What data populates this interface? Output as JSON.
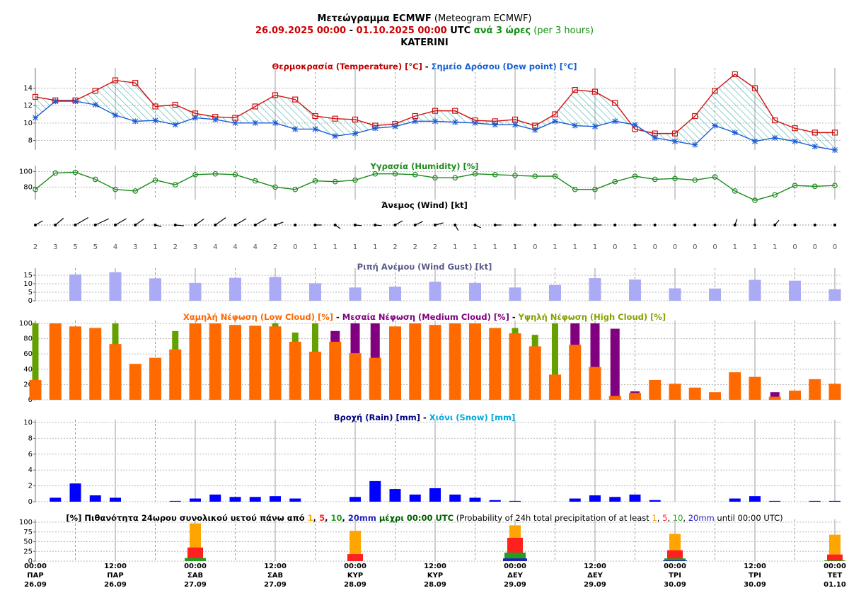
{
  "header": {
    "lines": [
      [
        {
          "text": "Μετεώγραμμα ECMWF",
          "color": "#000000",
          "bold": true
        },
        {
          "text": " (Meteogram ECMWF)",
          "color": "#000000",
          "bold": false
        }
      ],
      [
        {
          "text": "26.09.2025 00:00",
          "color": "#cc0000",
          "bold": true
        },
        {
          "text": " - ",
          "color": "#000000",
          "bold": true
        },
        {
          "text": "01.10.2025 00:00",
          "color": "#cc0000",
          "bold": true
        },
        {
          "text": " UTC",
          "color": "#000000",
          "bold": true
        },
        {
          "text": " ανά 3 ώρες",
          "color": "#109010",
          "bold": true
        },
        {
          "text": " (per 3 hours)",
          "color": "#109010",
          "bold": false
        }
      ],
      [
        {
          "text": "KATERINI",
          "color": "#000000",
          "bold": true
        }
      ]
    ]
  },
  "time_axis": {
    "labels": [
      {
        "time": "00:00",
        "day": "ΠΑΡ",
        "date": "26.09"
      },
      {
        "time": "12:00",
        "day": "ΠΑΡ",
        "date": "26.09"
      },
      {
        "time": "00:00",
        "day": "ΣΑΒ",
        "date": "27.09"
      },
      {
        "time": "12:00",
        "day": "ΣΑΒ",
        "date": "27.09"
      },
      {
        "time": "00:00",
        "day": "ΚΥΡ",
        "date": "28.09"
      },
      {
        "time": "12:00",
        "day": "ΚΥΡ",
        "date": "28.09"
      },
      {
        "time": "00:00",
        "day": "ΔΕΥ",
        "date": "29.09"
      },
      {
        "time": "12:00",
        "day": "ΔΕΥ",
        "date": "29.09"
      },
      {
        "time": "00:00",
        "day": "ΤΡΙ",
        "date": "30.09"
      },
      {
        "time": "12:00",
        "day": "ΤΡΙ",
        "date": "30.09"
      },
      {
        "time": "00:00",
        "day": "ΤΕΤ",
        "date": "01.10"
      }
    ]
  },
  "chart_data": [
    {
      "type": "line",
      "title_parts": [
        {
          "text": "Θερμοκρασία (Temperature) [°C]",
          "color": "#c00000",
          "bold": true
        },
        {
          "text": " - ",
          "color": "#000000",
          "bold": true
        },
        {
          "text": "Σημείο Δρόσου (Dew point) [°C]",
          "color": "#1560d0",
          "bold": true
        }
      ],
      "ylim": [
        6.9,
        16
      ],
      "yticks": [
        8,
        10,
        12,
        14
      ],
      "grid": true,
      "fill_between": true,
      "fill_color": "#20a0a0",
      "series": [
        {
          "name": "Temperature",
          "color": "#d01010",
          "marker": "square",
          "values": [
            13.0,
            12.6,
            12.6,
            13.7,
            14.9,
            14.6,
            11.9,
            12.1,
            11.1,
            10.7,
            10.6,
            11.9,
            13.2,
            12.7,
            10.8,
            10.5,
            10.4,
            9.7,
            9.9,
            10.8,
            11.4,
            11.4,
            10.3,
            10.2,
            10.4,
            9.7,
            11.0,
            13.8,
            13.6,
            12.3,
            9.3,
            8.8,
            8.8,
            10.8,
            13.7,
            15.6,
            14.0,
            10.3,
            9.4,
            8.9,
            8.9
          ]
        },
        {
          "name": "Dew point",
          "color": "#1a5cd8",
          "marker": "star",
          "values": [
            10.6,
            12.5,
            12.5,
            12.1,
            10.9,
            10.2,
            10.3,
            9.8,
            10.6,
            10.4,
            10.0,
            10.0,
            10.0,
            9.3,
            9.3,
            8.5,
            8.8,
            9.4,
            9.6,
            10.2,
            10.2,
            10.1,
            10.0,
            9.8,
            9.8,
            9.2,
            10.2,
            9.7,
            9.6,
            10.2,
            9.8,
            8.3,
            7.9,
            7.5,
            9.7,
            8.9,
            7.9,
            8.3,
            7.9,
            7.3,
            6.9
          ]
        }
      ]
    },
    {
      "type": "line",
      "title_parts": [
        {
          "text": "Υγρασία (Humidity) [%]",
          "color": "#1a8a1a",
          "bold": true
        }
      ],
      "ylim": [
        64,
        104
      ],
      "yticks": [
        80,
        100
      ],
      "grid": true,
      "series": [
        {
          "name": "Humidity",
          "color": "#1a8a1a",
          "marker": "circle",
          "values": [
            77,
            98,
            99,
            90,
            77,
            75,
            89,
            83,
            96,
            97,
            96,
            88,
            80,
            77,
            88,
            87,
            89,
            97,
            97,
            96,
            92,
            92,
            97,
            96,
            95,
            94,
            94,
            77,
            77,
            87,
            94,
            90,
            91,
            89,
            93,
            75,
            63,
            70,
            82,
            81,
            82
          ]
        }
      ]
    },
    {
      "type": "wind",
      "title_parts": [
        {
          "text": "Άνεμος (Wind) [kt]",
          "color": "#000000",
          "bold": true
        }
      ],
      "color": "#000000",
      "speeds": [
        2,
        3,
        5,
        5,
        4,
        3,
        1,
        2,
        3,
        4,
        4,
        4,
        2,
        0,
        1,
        1,
        1,
        1,
        2,
        2,
        2,
        1,
        1,
        1,
        1,
        0,
        1,
        1,
        1,
        0,
        1,
        0,
        0,
        0,
        0,
        1,
        1,
        1,
        0,
        0,
        0
      ],
      "directions": [
        60,
        50,
        60,
        65,
        60,
        55,
        105,
        95,
        55,
        55,
        60,
        60,
        70,
        null,
        90,
        125,
        95,
        95,
        60,
        65,
        75,
        150,
        115,
        90,
        90,
        null,
        90,
        90,
        90,
        null,
        90,
        null,
        null,
        null,
        null,
        20,
        0,
        40,
        null,
        null,
        null
      ]
    },
    {
      "type": "bar",
      "title_parts": [
        {
          "text": "Ριπή Ανέμου (Wind Gust) [kt]",
          "color": "#5a5a8a",
          "bold": true
        }
      ],
      "ylim": [
        0,
        17.5
      ],
      "yticks": [
        0,
        5,
        10,
        15
      ],
      "grid": true,
      "series": [
        {
          "name": "Wind Gust",
          "color": "#aaaaf5",
          "values": [
            null,
            null,
            15.5,
            null,
            16.8,
            null,
            13.2,
            null,
            10.5,
            null,
            13.5,
            null,
            14,
            null,
            10.3,
            null,
            7.8,
            null,
            8.3,
            null,
            11.2,
            null,
            10.5,
            null,
            7.8,
            null,
            9.3,
            null,
            13.3,
            null,
            12.5,
            null,
            7.3,
            null,
            7.2,
            null,
            12.3,
            null,
            11.8,
            null,
            6.8
          ]
        }
      ]
    },
    {
      "type": "bar",
      "title_parts": [
        {
          "text": "Χαμηλή Νέφωση (Low Cloud) [%]",
          "color": "#ff6600",
          "bold": true
        },
        {
          "text": " - ",
          "color": "#000000",
          "bold": true
        },
        {
          "text": "Μεσαία Νέφωση (Medium Cloud) [%]",
          "color": "#800080",
          "bold": true
        },
        {
          "text": " - ",
          "color": "#000000",
          "bold": true
        },
        {
          "text": "Υψηλή Νέφωση (High Cloud) [%]",
          "color": "#8aa000",
          "bold": true
        }
      ],
      "ylim": [
        0,
        100
      ],
      "yticks": [
        0,
        20,
        40,
        60,
        80,
        100
      ],
      "grid": true,
      "series": [
        {
          "name": "Low Cloud",
          "color": "#ff6a00",
          "values": [
            26,
            100,
            96,
            94,
            73,
            47,
            55,
            66,
            100,
            100,
            98,
            97,
            96,
            76,
            63,
            76,
            61,
            55,
            96,
            100,
            98,
            100,
            100,
            94,
            87,
            70,
            33,
            72,
            43,
            5,
            9,
            26,
            21,
            16,
            10,
            36,
            30,
            4,
            12,
            27,
            21
          ]
        },
        {
          "name": "Medium Cloud",
          "color": "#800080",
          "values": [
            0,
            0,
            0,
            0,
            0,
            0,
            0,
            0,
            0,
            0,
            0,
            0,
            0,
            0,
            0,
            90,
            100,
            100,
            0,
            0,
            0,
            0,
            0,
            0,
            0,
            0,
            0,
            100,
            100,
            93,
            11,
            0,
            0,
            0,
            0,
            0,
            0,
            10,
            0,
            0,
            0
          ]
        },
        {
          "name": "High Cloud",
          "color": "#66a000",
          "values": [
            100,
            0,
            0,
            0,
            100,
            0,
            0,
            90,
            0,
            0,
            0,
            0,
            100,
            88,
            100,
            0,
            0,
            0,
            0,
            0,
            0,
            0,
            0,
            0,
            94,
            85,
            100,
            0,
            0,
            0,
            0,
            0,
            0,
            0,
            0,
            0,
            0,
            0,
            0,
            0,
            0
          ]
        }
      ]
    },
    {
      "type": "bar",
      "title_parts": [
        {
          "text": "Βροχή (Rain) [mm]",
          "color": "#000080",
          "bold": true
        },
        {
          "text": " - ",
          "color": "#000000",
          "bold": true
        },
        {
          "text": "Χιόνι (Snow) [mm]",
          "color": "#00aadd",
          "bold": true
        }
      ],
      "ylim": [
        0,
        10
      ],
      "yticks": [
        0,
        2,
        4,
        6,
        8,
        10
      ],
      "grid": true,
      "series": [
        {
          "name": "Rain",
          "color": "#0000ff",
          "values": [
            0,
            0.5,
            2.3,
            0.8,
            0.5,
            0,
            0,
            0.1,
            0.4,
            0.9,
            0.6,
            0.6,
            0.7,
            0.4,
            0,
            0,
            0.6,
            2.6,
            1.6,
            0.9,
            1.7,
            0.9,
            0.5,
            0.2,
            0.1,
            0,
            0,
            0.4,
            0.8,
            0.6,
            0.9,
            0.2,
            0,
            0,
            0,
            0.4,
            0.7,
            0.1,
            0,
            0.1,
            0.1
          ]
        },
        {
          "name": "Snow",
          "color": "#00aadd",
          "values": [
            0,
            0,
            0,
            0,
            0,
            0,
            0,
            0,
            0,
            0,
            0,
            0,
            0,
            0,
            0,
            0,
            0,
            0,
            0,
            0,
            0,
            0,
            0,
            0,
            0,
            0,
            0,
            0,
            0,
            0,
            0,
            0,
            0,
            0,
            0,
            0,
            0,
            0,
            0,
            0,
            0
          ]
        }
      ]
    },
    {
      "type": "bar",
      "title_parts": [
        {
          "text": "[%] Πιθανότητα 24ωρου συνολικού υετού πάνω από ",
          "color": "#000000",
          "bold": true
        },
        {
          "text": "1",
          "color": "#ffa500",
          "bold": true
        },
        {
          "text": ", ",
          "color": "#000000",
          "bold": true
        },
        {
          "text": "5",
          "color": "#ff2020",
          "bold": true
        },
        {
          "text": ", ",
          "color": "#000000",
          "bold": true
        },
        {
          "text": "10",
          "color": "#20a020",
          "bold": true
        },
        {
          "text": ", ",
          "color": "#000000",
          "bold": true
        },
        {
          "text": "20mm",
          "color": "#2020c0",
          "bold": true
        },
        {
          "text": " μέχρι 00:00 UTC",
          "color": "#006000",
          "bold": true
        },
        {
          "text": " (Probability of 24h total precipitation of at least ",
          "color": "#000000",
          "bold": false
        },
        {
          "text": "1",
          "color": "#ffa500",
          "bold": false
        },
        {
          "text": ", ",
          "color": "#000000",
          "bold": false
        },
        {
          "text": "5",
          "color": "#ff2020",
          "bold": false
        },
        {
          "text": ", ",
          "color": "#000000",
          "bold": false
        },
        {
          "text": "10",
          "color": "#20a020",
          "bold": false
        },
        {
          "text": ", ",
          "color": "#000000",
          "bold": false
        },
        {
          "text": "20mm",
          "color": "#2020c0",
          "bold": false
        },
        {
          "text": " until 00:00 UTC)",
          "color": "#000000",
          "bold": false
        }
      ],
      "ylim": [
        0,
        100
      ],
      "yticks": [
        0,
        25,
        50,
        75,
        100
      ],
      "grid": true,
      "series": [
        {
          "name": "1mm",
          "color": "#ffa500",
          "values": [
            null,
            null,
            null,
            null,
            null,
            null,
            null,
            null,
            97,
            null,
            null,
            null,
            null,
            null,
            null,
            null,
            78,
            null,
            null,
            null,
            null,
            null,
            null,
            null,
            92,
            null,
            null,
            null,
            null,
            null,
            null,
            null,
            70,
            null,
            null,
            null,
            null,
            null,
            null,
            null,
            68
          ]
        },
        {
          "name": "5mm",
          "color": "#ff2020",
          "values": [
            null,
            null,
            null,
            null,
            null,
            null,
            null,
            null,
            35,
            null,
            null,
            null,
            null,
            null,
            null,
            null,
            18,
            null,
            null,
            null,
            null,
            null,
            null,
            null,
            60,
            null,
            null,
            null,
            null,
            null,
            null,
            null,
            28,
            null,
            null,
            null,
            null,
            null,
            null,
            null,
            17
          ]
        },
        {
          "name": "10mm",
          "color": "#20a020",
          "values": [
            null,
            null,
            null,
            null,
            null,
            null,
            null,
            null,
            8,
            null,
            null,
            null,
            null,
            null,
            null,
            null,
            0,
            null,
            null,
            null,
            null,
            null,
            null,
            null,
            22,
            null,
            null,
            null,
            null,
            null,
            null,
            null,
            7,
            null,
            null,
            null,
            null,
            null,
            null,
            null,
            2
          ]
        },
        {
          "name": "20mm",
          "color": "#2020c0",
          "values": [
            null,
            null,
            null,
            null,
            null,
            null,
            null,
            null,
            0,
            null,
            null,
            null,
            null,
            null,
            null,
            null,
            0,
            null,
            null,
            null,
            null,
            null,
            null,
            null,
            7,
            null,
            null,
            null,
            null,
            null,
            null,
            null,
            2,
            null,
            null,
            null,
            null,
            null,
            null,
            null,
            0
          ]
        }
      ]
    }
  ]
}
